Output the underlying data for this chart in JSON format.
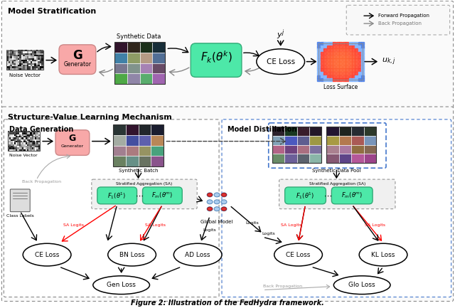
{
  "title": "Figure 2: Illustration of the FedHydra framework.",
  "top_label": "Model Stratification",
  "bottom_label": "Structure-Value Learning Mechanism",
  "left_sub_label": "Data Generation",
  "right_sub_label": "Model Distillation",
  "gen_color": "#f8a8a8",
  "fk_color": "#4de8a8",
  "sa_color": "#4de8a8",
  "bg": "#ffffff",
  "gray_dash": "#999999",
  "blue_dash": "#4477cc"
}
